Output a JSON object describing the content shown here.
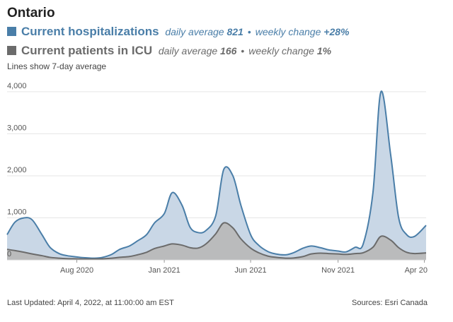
{
  "header": {
    "region": "Ontario",
    "note": "Lines show 7-day average"
  },
  "legend": {
    "hospitalizations": {
      "label": "Current hospitalizations",
      "avg_text": "daily average",
      "avg_value": "821",
      "change_text": "weekly change",
      "change_value": "+28%"
    },
    "icu": {
      "label": "Current patients in ICU",
      "avg_text": "daily average",
      "avg_value": "166",
      "change_text": "weekly change",
      "change_value": "1%"
    },
    "separator": "•"
  },
  "footer": {
    "updated": "Last Updated: April 4, 2022, at 11:00:00 am EST",
    "source": "Sources: Esri Canada"
  },
  "colors": {
    "hosp_line": "#4a7ea8",
    "hosp_fill": "#c9d7e6",
    "icu_line": "#6b6b6b",
    "icu_fill": "#b9b9b9",
    "grid": "#e6e6e6"
  },
  "chart_data": {
    "type": "area",
    "ylim": [
      0,
      4200
    ],
    "yticks": [
      0,
      1000,
      2000,
      3000,
      4000
    ],
    "ytick_labels": [
      "0",
      "1,000",
      "2,000",
      "3,000",
      "4,000"
    ],
    "xlim": [
      "2020-04-01",
      "2022-04-04"
    ],
    "xticks": [
      "2020-08-01",
      "2021-01-01",
      "2021-06-01",
      "2021-11-01",
      "2022-04-01"
    ],
    "xtick_labels": [
      "Aug 2020",
      "Jan 2021",
      "Jun 2021",
      "Nov 2021",
      "Apr 20"
    ],
    "grid": true,
    "series": [
      {
        "name": "Current hospitalizations",
        "x": [
          "2020-04-01",
          "2020-04-15",
          "2020-05-01",
          "2020-05-15",
          "2020-06-01",
          "2020-06-15",
          "2020-07-01",
          "2020-07-15",
          "2020-08-01",
          "2020-08-15",
          "2020-09-01",
          "2020-09-15",
          "2020-10-01",
          "2020-10-15",
          "2020-11-01",
          "2020-11-15",
          "2020-12-01",
          "2020-12-15",
          "2021-01-01",
          "2021-01-15",
          "2021-02-01",
          "2021-02-15",
          "2021-03-01",
          "2021-03-15",
          "2021-04-01",
          "2021-04-15",
          "2021-05-01",
          "2021-05-15",
          "2021-06-01",
          "2021-06-15",
          "2021-07-01",
          "2021-07-15",
          "2021-08-01",
          "2021-08-15",
          "2021-09-01",
          "2021-09-15",
          "2021-10-01",
          "2021-10-15",
          "2021-11-01",
          "2021-11-15",
          "2021-12-01",
          "2021-12-15",
          "2022-01-01",
          "2022-01-15",
          "2022-02-01",
          "2022-02-15",
          "2022-03-01",
          "2022-03-15",
          "2022-04-04"
        ],
        "values": [
          600,
          900,
          1000,
          950,
          600,
          300,
          150,
          100,
          70,
          50,
          40,
          60,
          130,
          250,
          330,
          450,
          600,
          880,
          1100,
          1600,
          1300,
          780,
          650,
          700,
          1050,
          2150,
          2000,
          1300,
          600,
          350,
          200,
          140,
          120,
          170,
          280,
          330,
          290,
          240,
          210,
          190,
          300,
          380,
          1600,
          4000,
          2500,
          1000,
          600,
          560,
          821
        ]
      },
      {
        "name": "Current patients in ICU",
        "x": [
          "2020-04-01",
          "2020-04-15",
          "2020-05-01",
          "2020-05-15",
          "2020-06-01",
          "2020-06-15",
          "2020-07-01",
          "2020-07-15",
          "2020-08-01",
          "2020-08-15",
          "2020-09-01",
          "2020-09-15",
          "2020-10-01",
          "2020-10-15",
          "2020-11-01",
          "2020-11-15",
          "2020-12-01",
          "2020-12-15",
          "2021-01-01",
          "2021-01-15",
          "2021-02-01",
          "2021-02-15",
          "2021-03-01",
          "2021-03-15",
          "2021-04-01",
          "2021-04-15",
          "2021-05-01",
          "2021-05-15",
          "2021-06-01",
          "2021-06-15",
          "2021-07-01",
          "2021-07-15",
          "2021-08-01",
          "2021-08-15",
          "2021-09-01",
          "2021-09-15",
          "2021-10-01",
          "2021-10-15",
          "2021-11-01",
          "2021-11-15",
          "2021-12-01",
          "2021-12-15",
          "2022-01-01",
          "2022-01-15",
          "2022-02-01",
          "2022-02-15",
          "2022-03-01",
          "2022-03-15",
          "2022-04-04"
        ],
        "values": [
          250,
          220,
          180,
          140,
          100,
          60,
          40,
          30,
          25,
          20,
          20,
          25,
          40,
          60,
          80,
          120,
          180,
          270,
          330,
          380,
          350,
          290,
          280,
          380,
          620,
          880,
          760,
          500,
          280,
          170,
          90,
          60,
          40,
          45,
          80,
          140,
          160,
          150,
          140,
          130,
          150,
          170,
          300,
          560,
          470,
          290,
          180,
          150,
          166
        ]
      }
    ]
  }
}
